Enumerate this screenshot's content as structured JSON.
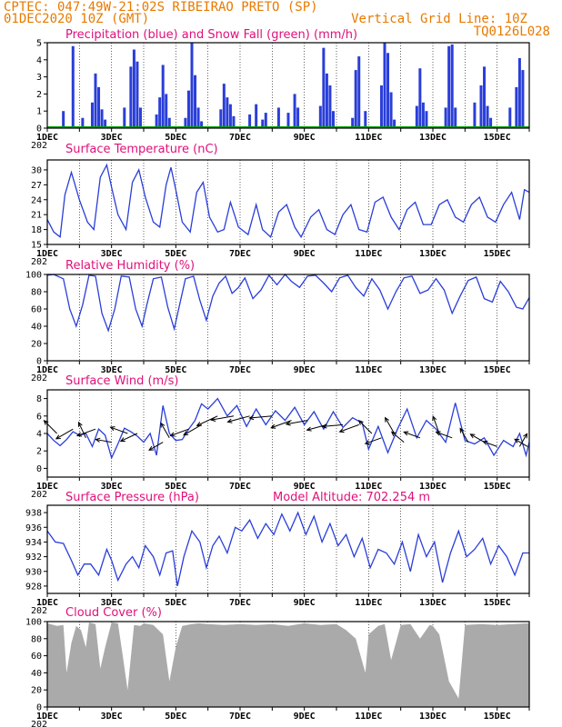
{
  "header": {
    "line1_left": "CPTEC:   047:49W-21:02S  RIBEIRAO PRETO (SP)",
    "line2_left": "01DEC2020 10Z (GMT)",
    "line2_right": "Vertical Grid Line: 10Z",
    "line3_right": "TQ0126L028"
  },
  "colors": {
    "header_text": "#e87a00",
    "panel_title": "#e0107a",
    "series_line": "#2a3ed8",
    "precip_bar": "#2a3ed8",
    "snow_line": "#00a000",
    "cloud_fill": "#aaaaaa",
    "grid_line": "#000000"
  },
  "x_axis": {
    "start_day": 1,
    "end_day": 16,
    "tick_labels": [
      "1DEC",
      "3DEC",
      "5DEC",
      "7DEC",
      "9DEC",
      "11DEC",
      "13DEC",
      "15DEC"
    ],
    "tick_days": [
      1,
      3,
      5,
      7,
      9,
      11,
      13,
      15
    ],
    "year_stub": "202"
  },
  "chart_data": [
    {
      "type": "bar",
      "title": "Precipitation (blue) and Snow Fall (green) (mm/h)",
      "ylim": [
        0,
        5
      ],
      "yticks": [
        0,
        1,
        2,
        3,
        4,
        5
      ],
      "series": [
        {
          "name": "Precipitation",
          "x": [
            1.5,
            1.8,
            2.1,
            2.4,
            2.5,
            2.6,
            2.7,
            2.8,
            3.4,
            3.6,
            3.7,
            3.8,
            3.9,
            4.4,
            4.5,
            4.6,
            4.7,
            4.8,
            5.3,
            5.4,
            5.5,
            5.6,
            5.7,
            5.8,
            6.4,
            6.5,
            6.6,
            6.7,
            6.8,
            7.3,
            7.5,
            7.7,
            7.8,
            8.2,
            8.5,
            8.7,
            8.8,
            9.5,
            9.6,
            9.7,
            9.8,
            9.9,
            10.5,
            10.6,
            10.7,
            10.9,
            11.4,
            11.5,
            11.6,
            11.7,
            11.8,
            12.5,
            12.6,
            12.7,
            12.8,
            13.4,
            13.5,
            13.6,
            13.7,
            14.3,
            14.5,
            14.6,
            14.7,
            14.8,
            15.4,
            15.6,
            15.7,
            15.8
          ],
          "values": [
            1.0,
            4.8,
            0.6,
            1.5,
            3.2,
            2.4,
            1.1,
            0.5,
            1.2,
            3.6,
            4.6,
            3.9,
            1.2,
            0.8,
            1.8,
            3.7,
            2.0,
            0.6,
            0.6,
            2.2,
            5.0,
            3.1,
            1.2,
            0.4,
            1.1,
            2.6,
            1.8,
            1.4,
            0.7,
            0.8,
            1.4,
            0.5,
            0.9,
            1.2,
            0.9,
            2.0,
            1.2,
            1.3,
            4.7,
            3.2,
            2.5,
            1.0,
            0.6,
            3.4,
            4.2,
            1.0,
            2.5,
            5.0,
            4.4,
            2.1,
            0.5,
            1.3,
            3.5,
            1.5,
            1.0,
            1.2,
            4.8,
            4.9,
            1.2,
            1.5,
            2.5,
            3.6,
            1.3,
            0.6,
            1.2,
            2.4,
            4.1,
            3.4
          ]
        },
        {
          "name": "Snow Fall",
          "x": [
            1.0,
            16.0
          ],
          "values": [
            0,
            0
          ]
        }
      ]
    },
    {
      "type": "line",
      "title": "Surface Temperature (nC)",
      "ylim": [
        15,
        32
      ],
      "yticks": [
        15,
        18,
        21,
        24,
        27,
        30
      ],
      "series": [
        {
          "name": "Surface Temperature",
          "x": [
            1.0,
            1.2,
            1.4,
            1.55,
            1.75,
            2.0,
            2.25,
            2.45,
            2.65,
            2.85,
            3.0,
            3.2,
            3.45,
            3.65,
            3.85,
            4.05,
            4.3,
            4.5,
            4.7,
            4.85,
            5.0,
            5.2,
            5.45,
            5.65,
            5.85,
            6.05,
            6.3,
            6.5,
            6.7,
            6.95,
            7.25,
            7.5,
            7.7,
            7.95,
            8.2,
            8.45,
            8.7,
            8.9,
            9.2,
            9.45,
            9.7,
            9.95,
            10.2,
            10.45,
            10.7,
            10.95,
            11.2,
            11.45,
            11.7,
            11.95,
            12.2,
            12.45,
            12.7,
            12.95,
            13.2,
            13.45,
            13.7,
            13.95,
            14.2,
            14.45,
            14.7,
            14.95,
            15.2,
            15.45,
            15.7,
            15.85,
            16.0
          ],
          "values": [
            20.0,
            17.5,
            16.5,
            25.0,
            29.5,
            24.0,
            19.5,
            18.0,
            28.5,
            31.0,
            26.5,
            21.0,
            18.0,
            27.5,
            30.0,
            24.5,
            19.5,
            18.5,
            27.0,
            30.5,
            26.0,
            19.5,
            17.5,
            25.5,
            27.5,
            20.5,
            17.5,
            18.0,
            23.5,
            18.5,
            17.0,
            23.0,
            18.0,
            16.5,
            21.5,
            23.0,
            18.5,
            16.5,
            20.5,
            22.0,
            18.0,
            17.0,
            21.0,
            23.0,
            18.0,
            17.5,
            23.5,
            24.5,
            20.5,
            18.0,
            22.0,
            23.5,
            19.0,
            19.0,
            23.0,
            24.0,
            20.5,
            19.5,
            23.0,
            24.5,
            20.5,
            19.5,
            23.0,
            25.5,
            20.0,
            26.0,
            25.5
          ]
        }
      ]
    },
    {
      "type": "line",
      "title": "Relative Humidity (%)",
      "ylim": [
        0,
        100
      ],
      "yticks": [
        0,
        20,
        40,
        60,
        80,
        100
      ],
      "series": [
        {
          "name": "Relative Humidity",
          "x": [
            1.0,
            1.2,
            1.5,
            1.7,
            1.9,
            2.1,
            2.3,
            2.5,
            2.7,
            2.9,
            3.1,
            3.3,
            3.55,
            3.75,
            3.95,
            4.1,
            4.3,
            4.55,
            4.75,
            4.95,
            5.1,
            5.3,
            5.55,
            5.75,
            5.95,
            6.15,
            6.35,
            6.55,
            6.75,
            6.95,
            7.15,
            7.4,
            7.65,
            7.9,
            8.15,
            8.4,
            8.6,
            8.85,
            9.1,
            9.35,
            9.6,
            9.85,
            10.1,
            10.35,
            10.6,
            10.85,
            11.1,
            11.35,
            11.6,
            11.85,
            12.1,
            12.35,
            12.6,
            12.85,
            13.1,
            13.35,
            13.6,
            13.85,
            14.1,
            14.35,
            14.6,
            14.85,
            15.1,
            15.35,
            15.6,
            15.8,
            16.0
          ],
          "values": [
            99,
            100,
            95,
            60,
            40,
            65,
            99,
            98,
            55,
            35,
            60,
            98,
            97,
            60,
            40,
            65,
            95,
            97,
            62,
            37,
            62,
            95,
            98,
            70,
            47,
            75,
            90,
            98,
            78,
            85,
            96,
            72,
            82,
            99,
            88,
            100,
            92,
            85,
            98,
            99,
            90,
            80,
            96,
            99,
            85,
            75,
            95,
            82,
            60,
            80,
            96,
            98,
            78,
            82,
            95,
            82,
            55,
            75,
            93,
            97,
            72,
            68,
            92,
            80,
            62,
            60,
            73
          ]
        }
      ]
    },
    {
      "type": "line",
      "title": "Surface Wind (m/s)",
      "ylim": [
        -1,
        9
      ],
      "yticks": [
        0,
        2,
        4,
        6,
        8
      ],
      "series": [
        {
          "name": "Surface Wind",
          "x": [
            1.0,
            1.2,
            1.4,
            1.6,
            1.8,
            2.0,
            2.2,
            2.4,
            2.6,
            2.8,
            3.0,
            3.2,
            3.4,
            3.6,
            3.8,
            4.0,
            4.2,
            4.4,
            4.6,
            4.8,
            5.0,
            5.2,
            5.4,
            5.6,
            5.8,
            6.0,
            6.3,
            6.6,
            6.9,
            7.2,
            7.5,
            7.8,
            8.1,
            8.4,
            8.7,
            9.0,
            9.3,
            9.6,
            9.9,
            10.2,
            10.5,
            10.8,
            11.0,
            11.3,
            11.6,
            11.9,
            12.2,
            12.5,
            12.8,
            13.1,
            13.4,
            13.7,
            14.0,
            14.3,
            14.6,
            14.9,
            15.2,
            15.5,
            15.7,
            15.9,
            16.0
          ],
          "values": [
            4.0,
            3.2,
            2.6,
            3.3,
            4.2,
            3.8,
            4.0,
            2.5,
            4.5,
            3.8,
            1.2,
            2.8,
            4.6,
            4.2,
            3.7,
            3.0,
            4.0,
            1.5,
            7.2,
            4.0,
            3.2,
            3.3,
            4.5,
            5.5,
            7.4,
            6.8,
            8.0,
            6.0,
            7.2,
            4.8,
            6.8,
            5.0,
            6.6,
            5.5,
            7.0,
            5.0,
            6.5,
            4.5,
            6.5,
            4.7,
            5.8,
            5.2,
            2.2,
            4.8,
            1.8,
            4.5,
            6.8,
            3.5,
            5.5,
            4.5,
            3.0,
            7.5,
            3.2,
            2.8,
            3.5,
            1.5,
            3.2,
            2.5,
            4.0,
            1.5,
            3.0
          ]
        }
      ]
    },
    {
      "type": "line",
      "title": "Surface Pressure (hPa)",
      "annotation": "Model Altitude: 702.254 m",
      "ylim": [
        927,
        939
      ],
      "yticks": [
        928,
        930,
        932,
        934,
        936,
        938
      ],
      "series": [
        {
          "name": "Surface Pressure",
          "x": [
            1.0,
            1.25,
            1.5,
            1.75,
            1.95,
            2.15,
            2.35,
            2.6,
            2.85,
            3.0,
            3.2,
            3.45,
            3.65,
            3.85,
            4.05,
            4.3,
            4.5,
            4.7,
            4.9,
            5.05,
            5.25,
            5.5,
            5.75,
            5.95,
            6.15,
            6.35,
            6.6,
            6.85,
            7.05,
            7.3,
            7.55,
            7.8,
            8.05,
            8.3,
            8.55,
            8.8,
            9.05,
            9.3,
            9.55,
            9.8,
            10.05,
            10.3,
            10.55,
            10.8,
            11.05,
            11.3,
            11.55,
            11.8,
            12.05,
            12.3,
            12.55,
            12.8,
            13.05,
            13.3,
            13.55,
            13.8,
            14.05,
            14.3,
            14.55,
            14.8,
            15.05,
            15.3,
            15.55,
            15.8,
            16.0
          ],
          "values": [
            935.5,
            934.0,
            933.8,
            931.5,
            929.5,
            931.0,
            931.0,
            929.5,
            933.0,
            931.5,
            928.8,
            931.0,
            932.0,
            930.5,
            933.5,
            932.0,
            929.5,
            932.5,
            932.8,
            928.0,
            932.0,
            935.5,
            934.0,
            930.5,
            933.5,
            934.8,
            932.5,
            936.0,
            935.5,
            937.0,
            934.5,
            936.5,
            935.0,
            937.8,
            935.5,
            938.0,
            935.0,
            937.5,
            934.0,
            936.5,
            933.5,
            935.0,
            932.0,
            934.5,
            930.5,
            933.0,
            932.5,
            931.0,
            934.0,
            930.0,
            935.0,
            932.0,
            934.0,
            928.5,
            932.5,
            935.5,
            932.0,
            933.0,
            934.5,
            931.0,
            933.5,
            932.0,
            929.5,
            932.5,
            932.5
          ]
        }
      ]
    },
    {
      "type": "area",
      "title": "Cloud Cover (%)",
      "ylim": [
        0,
        100
      ],
      "yticks": [
        0,
        20,
        40,
        60,
        80,
        100
      ],
      "series": [
        {
          "name": "Cloud Cover",
          "x": [
            1.0,
            1.3,
            1.5,
            1.6,
            1.75,
            1.9,
            2.05,
            2.2,
            2.3,
            2.5,
            2.65,
            2.8,
            3.0,
            3.2,
            3.35,
            3.5,
            3.7,
            3.9,
            4.0,
            4.3,
            4.6,
            4.8,
            5.0,
            5.2,
            5.5,
            5.7,
            6.0,
            6.5,
            7.0,
            7.5,
            8.0,
            8.5,
            9.0,
            9.5,
            10.0,
            10.3,
            10.6,
            10.9,
            11.0,
            11.3,
            11.5,
            11.7,
            12.0,
            12.3,
            12.6,
            12.9,
            13.0,
            13.2,
            13.5,
            13.8,
            14.0,
            14.5,
            15.0,
            15.5,
            16.0
          ],
          "values": [
            98,
            95,
            96,
            40,
            75,
            95,
            90,
            70,
            99,
            97,
            45,
            70,
            99,
            98,
            60,
            20,
            96,
            95,
            98,
            96,
            85,
            30,
            70,
            95,
            97,
            98,
            97,
            96,
            97,
            96,
            97,
            95,
            98,
            96,
            97,
            90,
            80,
            40,
            85,
            95,
            97,
            55,
            96,
            97,
            80,
            96,
            95,
            85,
            30,
            10,
            96,
            97,
            96,
            97,
            98
          ]
        }
      ]
    }
  ],
  "wind_arrows": [
    {
      "day": 1.3,
      "speed": 4.0,
      "towards_deg": 225
    },
    {
      "day": 1.8,
      "speed": 4.5,
      "towards_deg": 150
    },
    {
      "day": 2.2,
      "speed": 3.5,
      "towards_deg": 245
    },
    {
      "day": 2.5,
      "speed": 4.5,
      "towards_deg": 160
    },
    {
      "day": 3.0,
      "speed": 3.0,
      "towards_deg": 190
    },
    {
      "day": 3.5,
      "speed": 4.0,
      "towards_deg": 200
    },
    {
      "day": 3.8,
      "speed": 4.0,
      "towards_deg": 155
    },
    {
      "day": 4.6,
      "speed": 3.0,
      "towards_deg": 150
    },
    {
      "day": 4.8,
      "speed": 3.5,
      "towards_deg": 240
    },
    {
      "day": 5.4,
      "speed": 4.5,
      "towards_deg": 160
    },
    {
      "day": 5.8,
      "speed": 5.0,
      "towards_deg": 150
    },
    {
      "day": 6.3,
      "speed": 6.0,
      "towards_deg": 155
    },
    {
      "day": 6.8,
      "speed": 6.0,
      "towards_deg": 170
    },
    {
      "day": 7.3,
      "speed": 6.0,
      "towards_deg": 165
    },
    {
      "day": 8.0,
      "speed": 6.0,
      "towards_deg": 175
    },
    {
      "day": 8.6,
      "speed": 5.5,
      "towards_deg": 160
    },
    {
      "day": 9.1,
      "speed": 5.5,
      "towards_deg": 170
    },
    {
      "day": 9.7,
      "speed": 5.0,
      "towards_deg": 165
    },
    {
      "day": 10.2,
      "speed": 5.0,
      "towards_deg": 175
    },
    {
      "day": 10.7,
      "speed": 5.0,
      "towards_deg": 160
    },
    {
      "day": 11.1,
      "speed": 4.0,
      "towards_deg": 225
    },
    {
      "day": 11.4,
      "speed": 3.5,
      "towards_deg": 160
    },
    {
      "day": 11.8,
      "speed": 4.0,
      "towards_deg": 240
    },
    {
      "day": 12.1,
      "speed": 3.0,
      "towards_deg": 220
    },
    {
      "day": 12.6,
      "speed": 3.5,
      "towards_deg": 200
    },
    {
      "day": 13.2,
      "speed": 4.0,
      "towards_deg": 250
    },
    {
      "day": 13.6,
      "speed": 3.5,
      "towards_deg": 200
    },
    {
      "day": 14.1,
      "speed": 3.0,
      "towards_deg": 240
    },
    {
      "day": 14.6,
      "speed": 3.0,
      "towards_deg": 210
    },
    {
      "day": 15.0,
      "speed": 2.5,
      "towards_deg": 200
    },
    {
      "day": 15.7,
      "speed": 2.5,
      "towards_deg": 300
    },
    {
      "day": 15.95,
      "speed": 2.5,
      "towards_deg": 210
    }
  ]
}
